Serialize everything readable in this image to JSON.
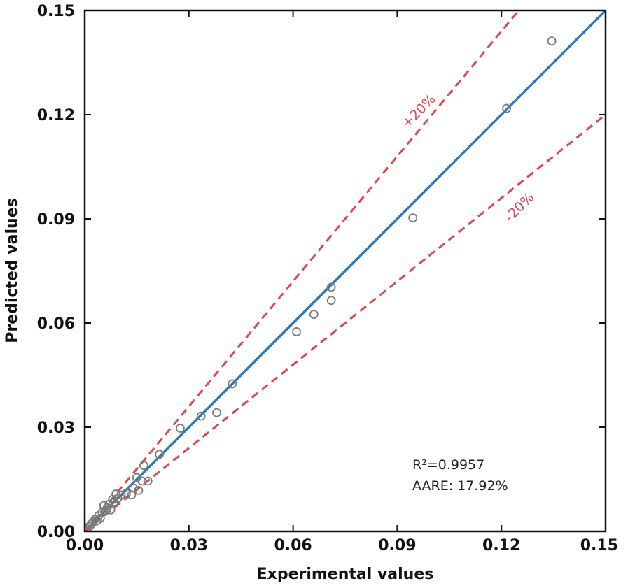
{
  "chart_data": {
    "type": "scatter",
    "xlabel": "Experimental values",
    "ylabel": "Predicted values",
    "xlim": [
      0,
      0.15
    ],
    "ylim": [
      0,
      0.15
    ],
    "xticks": [
      "0.00",
      "0.03",
      "0.06",
      "0.09",
      "0.12",
      "0.15"
    ],
    "yticks": [
      "0.00",
      "0.03",
      "0.06",
      "0.09",
      "0.12",
      "0.15"
    ],
    "grid": false,
    "reference_lines": [
      {
        "label": "",
        "slope": 1.0,
        "style": "solid",
        "color": "#2b7bc1"
      },
      {
        "label": "+20%",
        "slope": 1.2,
        "style": "dashed",
        "color": "#e0484d"
      },
      {
        "label": "-20%",
        "slope": 0.8,
        "style": "dashed",
        "color": "#e0484d"
      }
    ],
    "annotations": [
      "R²=0.9957",
      "AARE: 17.92%"
    ],
    "marker": {
      "shape": "open-circle",
      "color": "#7a7a7a"
    },
    "points": [
      {
        "x": 0.0005,
        "y": 0.0006
      },
      {
        "x": 0.001,
        "y": 0.0012
      },
      {
        "x": 0.0015,
        "y": 0.0016
      },
      {
        "x": 0.002,
        "y": 0.0022
      },
      {
        "x": 0.0025,
        "y": 0.0028
      },
      {
        "x": 0.003,
        "y": 0.0035
      },
      {
        "x": 0.0035,
        "y": 0.003
      },
      {
        "x": 0.004,
        "y": 0.0045
      },
      {
        "x": 0.0045,
        "y": 0.0038
      },
      {
        "x": 0.005,
        "y": 0.0055
      },
      {
        "x": 0.0055,
        "y": 0.0075
      },
      {
        "x": 0.006,
        "y": 0.006
      },
      {
        "x": 0.0065,
        "y": 0.0068
      },
      {
        "x": 0.007,
        "y": 0.0078
      },
      {
        "x": 0.0075,
        "y": 0.0062
      },
      {
        "x": 0.008,
        "y": 0.0092
      },
      {
        "x": 0.0085,
        "y": 0.0085
      },
      {
        "x": 0.009,
        "y": 0.0108
      },
      {
        "x": 0.0095,
        "y": 0.0095
      },
      {
        "x": 0.0105,
        "y": 0.0105
      },
      {
        "x": 0.012,
        "y": 0.011
      },
      {
        "x": 0.0135,
        "y": 0.0105
      },
      {
        "x": 0.014,
        "y": 0.0125
      },
      {
        "x": 0.015,
        "y": 0.0155
      },
      {
        "x": 0.0155,
        "y": 0.0118
      },
      {
        "x": 0.0165,
        "y": 0.0145
      },
      {
        "x": 0.017,
        "y": 0.019
      },
      {
        "x": 0.0182,
        "y": 0.0145
      },
      {
        "x": 0.0215,
        "y": 0.0222
      },
      {
        "x": 0.0275,
        "y": 0.0297
      },
      {
        "x": 0.0335,
        "y": 0.0332
      },
      {
        "x": 0.038,
        "y": 0.0342
      },
      {
        "x": 0.0425,
        "y": 0.0425
      },
      {
        "x": 0.061,
        "y": 0.0575
      },
      {
        "x": 0.066,
        "y": 0.0625
      },
      {
        "x": 0.071,
        "y": 0.0665
      },
      {
        "x": 0.071,
        "y": 0.0703
      },
      {
        "x": 0.0945,
        "y": 0.0903
      },
      {
        "x": 0.1215,
        "y": 0.1218
      },
      {
        "x": 0.1345,
        "y": 0.1412
      }
    ]
  }
}
